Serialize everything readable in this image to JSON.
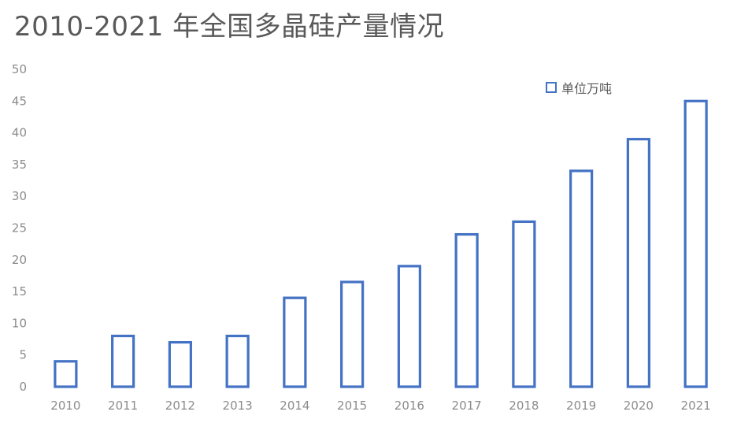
{
  "chart_data": {
    "type": "bar",
    "title": "2010-2021 年全国多晶硅产量情况",
    "categories": [
      "2010",
      "2011",
      "2012",
      "2013",
      "2014",
      "2015",
      "2016",
      "2017",
      "2018",
      "2019",
      "2020",
      "2021"
    ],
    "series": [
      {
        "name": "单位万吨",
        "values": [
          4,
          8,
          7,
          8,
          14,
          16.5,
          19,
          24,
          26,
          34,
          39,
          45
        ]
      }
    ],
    "y_ticks": [
      "0",
      "5",
      "10",
      "15",
      "20",
      "25",
      "30",
      "35",
      "40",
      "45",
      "50"
    ],
    "ylim": [
      0,
      50
    ],
    "xlabel": "",
    "ylabel": "",
    "bar_style": "outline",
    "bar_color": "#4472C4",
    "grid": false,
    "legend_position": "top-right"
  }
}
